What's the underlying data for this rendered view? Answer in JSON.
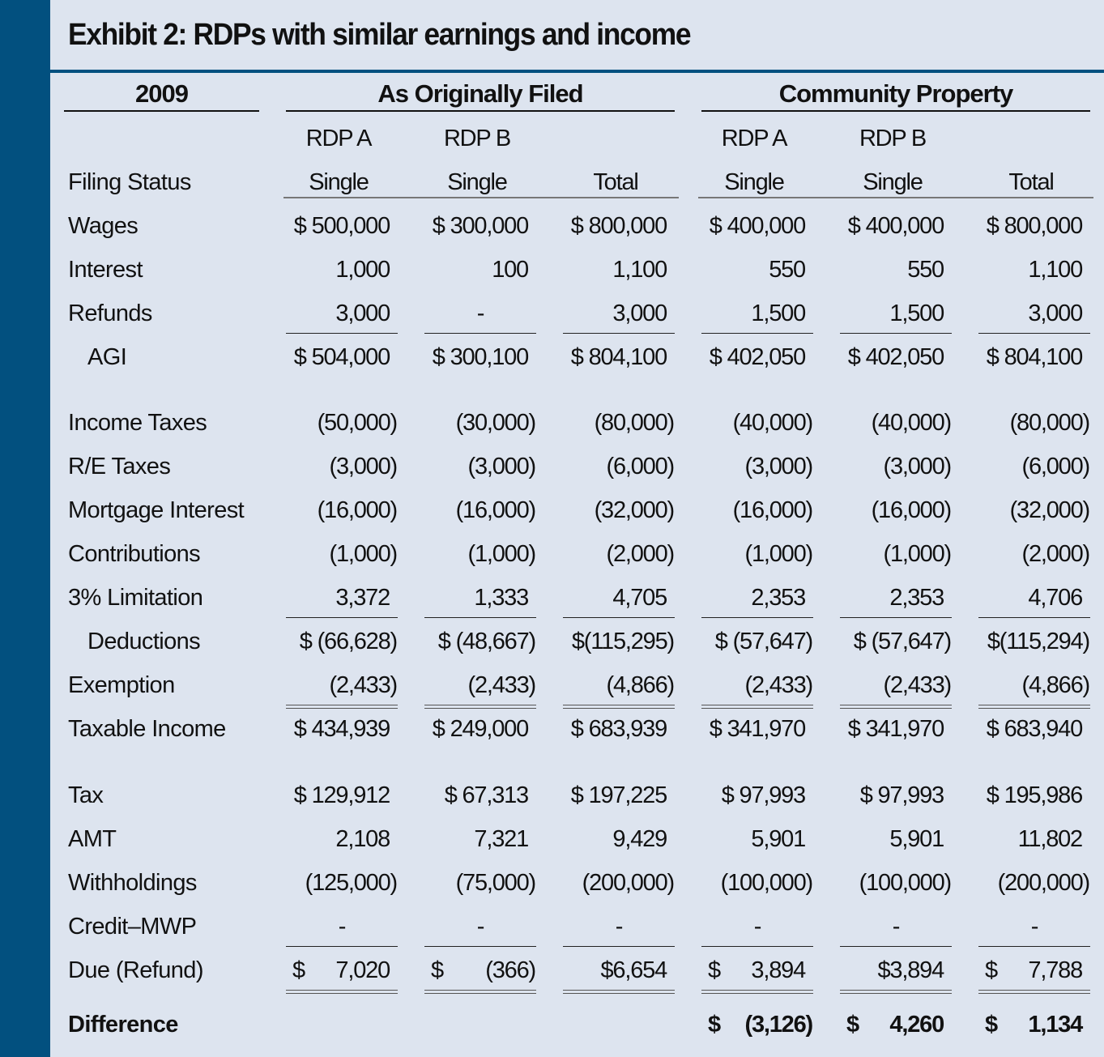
{
  "title": "Exhibit 2: RDPs with similar earnings and income",
  "groups": {
    "year": "2009",
    "original": "As Originally Filed",
    "community": "Community Property"
  },
  "colors": {
    "sidebar": "#02507f",
    "background": "#dde4ef"
  },
  "header_rows": [
    {
      "label": "",
      "values": [
        "RDP A",
        "RDP B",
        "",
        "RDP A",
        "RDP B",
        ""
      ]
    },
    {
      "label": "Filing Status",
      "values": [
        "Single",
        "Single",
        "Total",
        "Single",
        "Single",
        "Total"
      ]
    }
  ],
  "rows": [
    {
      "label": "Wages",
      "values": [
        "$ 500,000",
        "$ 300,000",
        "$ 800,000",
        "$ 400,000",
        "$ 400,000",
        "$ 800,000"
      ]
    },
    {
      "label": "Interest",
      "values": [
        "1,000",
        "100",
        "1,100",
        "550",
        "550",
        "1,100"
      ]
    },
    {
      "label": "Refunds",
      "values": [
        "3,000",
        "-",
        "3,000",
        "1,500",
        "1,500",
        "3,000"
      ],
      "underline": "single"
    },
    {
      "label": "AGI",
      "indent": true,
      "values": [
        "$ 504,000",
        "$ 300,100",
        "$ 804,100",
        "$ 402,050",
        "$ 402,050",
        "$ 804,100"
      ]
    },
    {
      "label": "Income Taxes",
      "values": [
        "(50,000)",
        "(30,000)",
        "(80,000)",
        "(40,000)",
        "(40,000)",
        "(80,000)"
      ]
    },
    {
      "label": "R/E Taxes",
      "values": [
        "(3,000)",
        "(3,000)",
        "(6,000)",
        "(3,000)",
        "(3,000)",
        "(6,000)"
      ]
    },
    {
      "label": "Mortgage Interest",
      "values": [
        "(16,000)",
        "(16,000)",
        "(32,000)",
        "(16,000)",
        "(16,000)",
        "(32,000)"
      ]
    },
    {
      "label": "Contributions",
      "values": [
        "(1,000)",
        "(1,000)",
        "(2,000)",
        "(1,000)",
        "(1,000)",
        "(2,000)"
      ]
    },
    {
      "label": "3% Limitation",
      "values": [
        "3,372",
        "1,333",
        "4,705",
        "2,353",
        "2,353",
        "4,706"
      ],
      "underline": "single"
    },
    {
      "label": "Deductions",
      "indent": true,
      "values": [
        "$ (66,628)",
        "$ (48,667)",
        "$(115,295)",
        "$ (57,647)",
        "$ (57,647)",
        "$(115,294)"
      ]
    },
    {
      "label": "Exemption",
      "values": [
        "(2,433)",
        "(2,433)",
        "(4,866)",
        "(2,433)",
        "(2,433)",
        "(4,866)"
      ],
      "underline": "double"
    },
    {
      "label": "Taxable Income",
      "values": [
        "$ 434,939",
        "$ 249,000",
        "$ 683,939",
        "$ 341,970",
        "$ 341,970",
        "$ 683,940"
      ]
    },
    {
      "label": "Tax",
      "values": [
        "$ 129,912",
        "$  67,313",
        "$ 197,225",
        "$  97,993",
        "$  97,993",
        "$ 195,986"
      ]
    },
    {
      "label": "AMT",
      "values": [
        "2,108",
        "7,321",
        "9,429",
        "5,901",
        "5,901",
        "11,802"
      ]
    },
    {
      "label": "Withholdings",
      "values": [
        "(125,000)",
        "(75,000)",
        "(200,000)",
        "(100,000)",
        "(100,000)",
        "(200,000)"
      ]
    },
    {
      "label": "Credit–MWP",
      "values": [
        "-",
        "-",
        "-",
        "-",
        "-",
        "-"
      ],
      "underline": "single"
    },
    {
      "label": "Due (Refund)",
      "spread": true,
      "values": [
        "$ 7,020",
        "$ (366)",
        "$6,654",
        "$ 3,894",
        "$3,894",
        "$ 7,788"
      ],
      "underline": "double"
    },
    {
      "label": "Difference",
      "bold": true,
      "spread": true,
      "values": [
        "",
        "",
        "",
        "$ (3,126)",
        "$ 4,260",
        "$ 1,134"
      ]
    }
  ]
}
